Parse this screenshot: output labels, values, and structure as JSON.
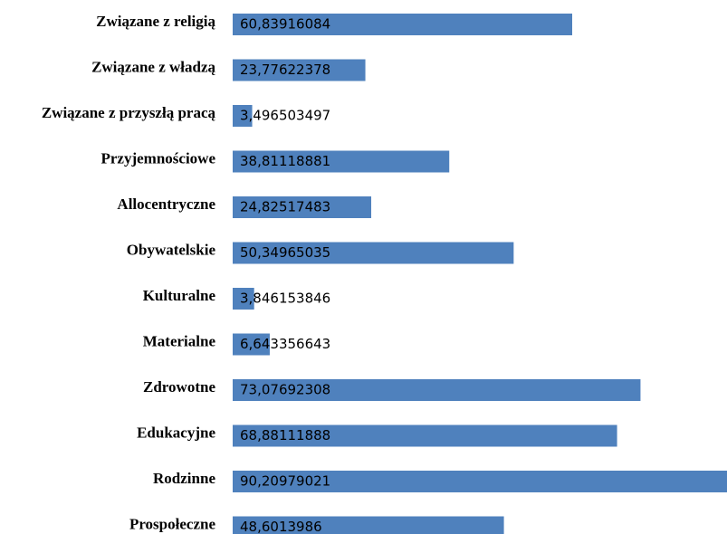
{
  "chart_data": {
    "type": "barh",
    "categories": [
      "Związane z religią",
      "Związane z władzą",
      "Związane z przyszłą pracą",
      "Przyjemnościowe",
      "Allocentryczne",
      "Obywatelskie",
      "Kulturalne",
      "Materialne",
      "Zdrowotne",
      "Edukacyjne",
      "Rodzinne",
      "Prospołeczne"
    ],
    "values": [
      60.83916084,
      23.77622378,
      3.496503497,
      38.81118881,
      24.82517483,
      50.34965035,
      3.846153846,
      6.643356643,
      73.07692308,
      68.88111888,
      90.20979021,
      48.6013986
    ],
    "value_labels": [
      "60,83916084",
      "23,77622378",
      "3,496503497",
      "38,81118881",
      "24,82517483",
      "50,34965035",
      "3,846153846",
      "6,643356643",
      "73,07692308",
      "68,88111888",
      "90,20979021",
      "48,6013986"
    ],
    "color": "#4f81bd",
    "xlim": [
      0,
      100
    ]
  }
}
